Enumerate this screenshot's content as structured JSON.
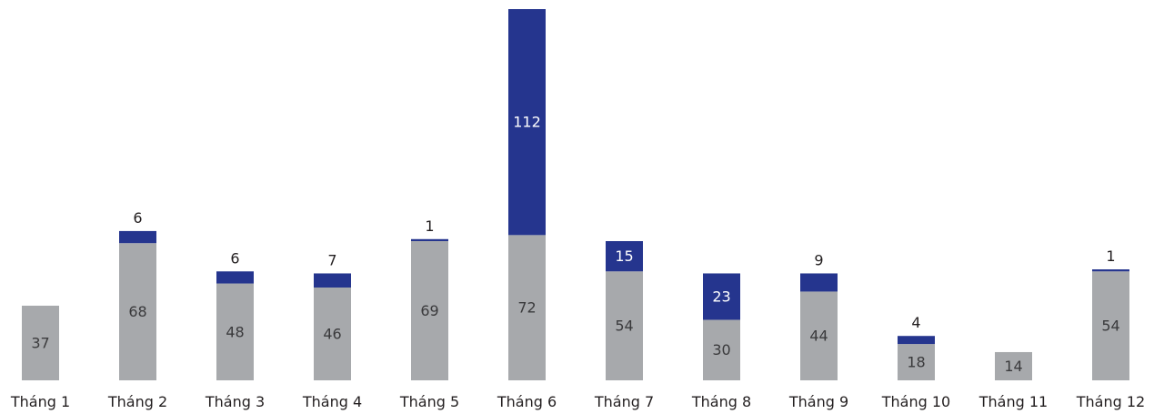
{
  "chart_data": {
    "type": "bar",
    "stacked": true,
    "title": "",
    "xlabel": "",
    "ylabel": "",
    "grid": false,
    "legend": "none",
    "categories": [
      "Tháng 1",
      "Tháng 2",
      "Tháng 3",
      "Tháng 4",
      "Tháng 5",
      "Tháng 6",
      "Tháng 7",
      "Tháng 8",
      "Tháng 9",
      "Tháng 10",
      "Tháng 11",
      "Tháng 12"
    ],
    "series": [
      {
        "color": "#a7a9ac",
        "values": [
          37,
          68,
          48,
          46,
          69,
          72,
          54,
          30,
          44,
          18,
          14,
          54
        ]
      },
      {
        "color": "#25358e",
        "values": [
          null,
          6,
          6,
          7,
          1,
          112,
          15,
          23,
          9,
          4,
          null,
          1
        ]
      }
    ],
    "ylim": [
      0,
      184
    ]
  }
}
